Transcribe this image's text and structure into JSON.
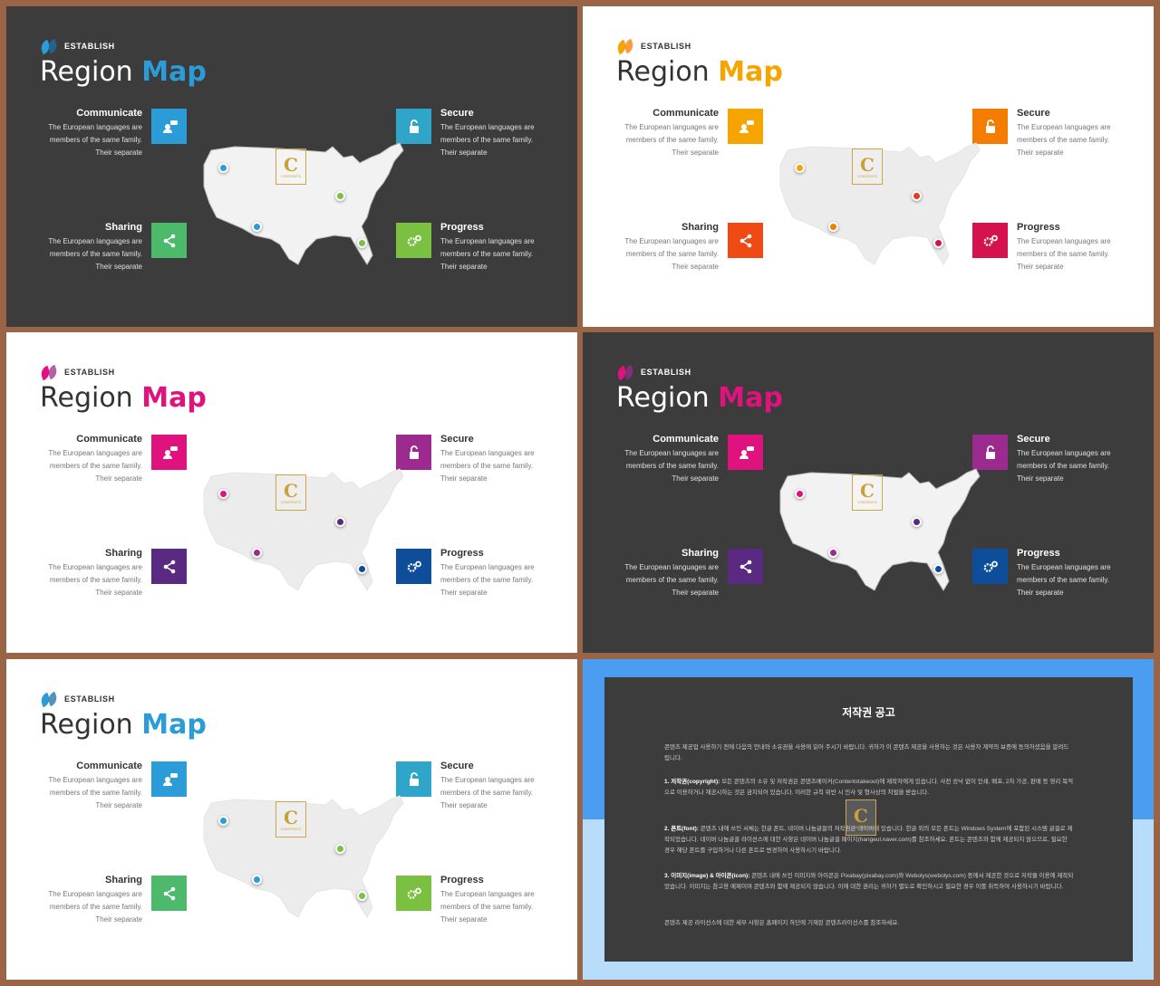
{
  "brand": "ESTABLISH",
  "title_word1": "Region",
  "title_word2": "Map",
  "features": {
    "communicate": {
      "title": "Communicate",
      "line1": "The European languages are",
      "line2": "members of the same family.",
      "line3": "Their separate"
    },
    "secure": {
      "title": "Secure",
      "line1": "The European languages are",
      "line2": "members of the same family.",
      "line3": "Their separate"
    },
    "sharing": {
      "title": "Sharing",
      "line1": "The European languages are",
      "line2": "members of the same family.",
      "line3": "Their separate"
    },
    "progress": {
      "title": "Progress",
      "line1": "The European languages are",
      "line2": "members of the same family.",
      "line3": "Their separate"
    }
  },
  "watermark": {
    "letter": "C",
    "text": "CONTENTS"
  },
  "slides": [
    {
      "theme": "dark",
      "accent": "#2b9cd8",
      "colors": {
        "communicate": "#2b9cd8",
        "secure": "#2fa6c9",
        "sharing": "#4cba6a",
        "progress": "#7ac142"
      },
      "pins": [
        "#2b9cd8",
        "#2b9cd8",
        "#7ac142",
        "#7ac142"
      ],
      "leaf": [
        "#2b9cd8",
        "#1a6fa8"
      ]
    },
    {
      "theme": "light",
      "accent": "#f5a400",
      "colors": {
        "communicate": "#f5a400",
        "secure": "#f47c00",
        "sharing": "#f04a14",
        "progress": "#d3124e"
      },
      "pins": [
        "#f5a400",
        "#f47c00",
        "#e43c24",
        "#d3124e"
      ],
      "leaf": [
        "#f5a400",
        "#f47c00"
      ]
    },
    {
      "theme": "light",
      "accent": "#e0127d",
      "colors": {
        "communicate": "#e0127d",
        "secure": "#9c2a8f",
        "sharing": "#5a2a82",
        "progress": "#0d4d9a"
      },
      "pins": [
        "#e0127d",
        "#9c2a8f",
        "#5a2a82",
        "#0d4d9a"
      ],
      "leaf": [
        "#e0127d",
        "#9c2a8f"
      ]
    },
    {
      "theme": "dark",
      "accent": "#e0127d",
      "colors": {
        "communicate": "#e0127d",
        "secure": "#9c2a8f",
        "sharing": "#5a2a82",
        "progress": "#0d4d9a"
      },
      "pins": [
        "#e0127d",
        "#9c2a8f",
        "#5a2a82",
        "#0d4d9a"
      ],
      "leaf": [
        "#e0127d",
        "#9c2a8f"
      ]
    },
    {
      "theme": "light",
      "accent": "#2b9cd8",
      "colors": {
        "communicate": "#2b9cd8",
        "secure": "#2fa6c9",
        "sharing": "#4cba6a",
        "progress": "#7ac142"
      },
      "pins": [
        "#2b9cd8",
        "#2b9cd8",
        "#7ac142",
        "#7ac142"
      ],
      "leaf": [
        "#2b9cd8",
        "#1a6fa8"
      ]
    }
  ],
  "icons": {
    "communicate": "chat-user-icon",
    "secure": "lock-icon",
    "sharing": "share-icon",
    "progress": "gears-icon"
  },
  "notice": {
    "title": "저작권 공고",
    "p1": "콘텐츠 제공업 사용하기 전에 다음의 안내와 소유권을 사용에 읽어 주시기 바랍니다. 귀하가 이 콘텐츠 제공을 사용하는 것은 사용자 계약의 보증에 동의하셨음을 알려드립니다.",
    "p2_label": "1. 저작권(copyright):",
    "p2": " 모든 콘텐츠의 소유 및 저작권은 콘텐츠메이커(Contentstakeout)에 제작자에게 있습니다. 사전 승낙 없이 인쇄, 배포, 2차 가공, 판매 등 영리 목적으로 이용하거나 재공시하는 것은 금지되어 있습니다. 이러한 규칙 위반 시 민사 및 형사상의 처벌을 받습니다.",
    "p3_label": "2. 폰트(font):",
    "p3": " 콘텐츠 내에 쓰인 서체는 한글 폰트, 네이버 나눔글꼴의 저작권은 네이버에 있습니다. 한글 외의 모든 폰트는 Windows System에 포함된 시스템 글꼴로 제작되었습니다. 네이버 나눔글꼴 라이선스에 대한 사항은 네이버 나눔글꼴 페이지(hangeul.naver.com)를 참조하세요. 폰트는 콘텐츠와 함께 제공되지 않으므로, 필요한 경우 해당 폰트를 구입하거나 다른 폰트로 변경하여 사용하시기 바랍니다.",
    "p4_label": "3. 이미지(image) & 아이콘(icon):",
    "p4": " 콘텐츠 내에 쓰인 이미지와 아이콘은 Pixabay(pixabay.com)와 Webolys(webolys.com) 등에서 제공한 것으로 저작물 이용에 제작되었습니다. 이미지는 참고용 예제이며 콘텐츠와 함께 제공되지 않습니다. 이에 대한 권리는 귀하가 별도로 확인하시고 필요한 경우 이를 취득하여 사용하시기 바랍니다.",
    "p5": "콘텐츠 제공 라이선스에 대한 세부 사항은 홈페이지 하단에 기재된 콘텐츠라이선스를 참조하세요."
  }
}
